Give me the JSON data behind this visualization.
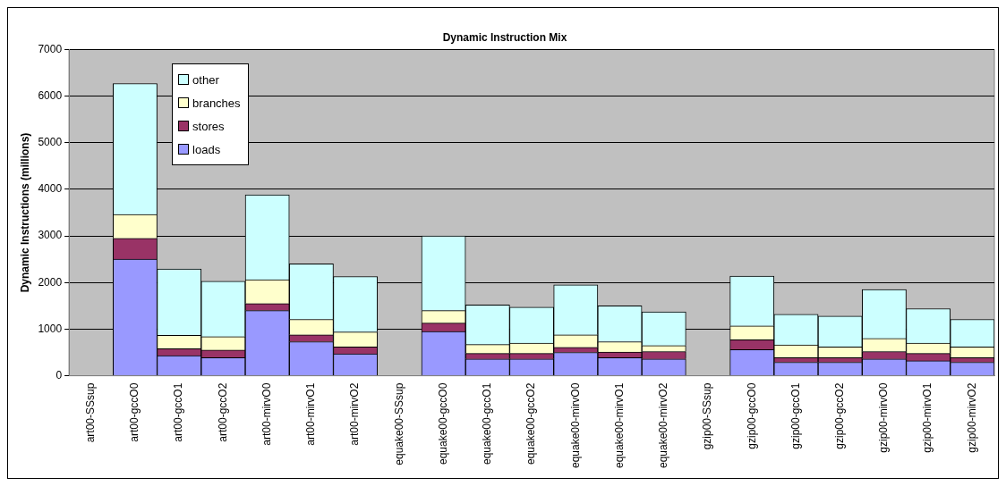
{
  "chart_data": {
    "type": "bar",
    "title": "Dynamic Instruction Mix",
    "ylabel": "Dynamic Instructions (millions)",
    "categories": [
      "art00-SSsup",
      "art00-gccO0",
      "art00-gccO1",
      "art00-gccO2",
      "art00-mirvO0",
      "art00-mirvO1",
      "art00-mirvO2",
      "equake00-SSsup",
      "equake00-gccO0",
      "equake00-gccO1",
      "equake00-gccO2",
      "equake00-mirvO0",
      "equake00-mirvO1",
      "equake00-mirvO2",
      "gzip00-SSsup",
      "gzip00-gccO0",
      "gzip00-gccO1",
      "gzip00-gccO2",
      "gzip00-mirvO0",
      "gzip00-mirvO1",
      "gzip00-mirvO2"
    ],
    "stacked": true,
    "series": [
      {
        "name": "loads",
        "color": "#9999ff",
        "values": [
          0,
          2500,
          430,
          390,
          1400,
          730,
          470,
          0,
          950,
          360,
          360,
          500,
          390,
          360,
          0,
          560,
          290,
          290,
          360,
          320,
          290
        ]
      },
      {
        "name": "stores",
        "color": "#993366",
        "values": [
          0,
          450,
          150,
          160,
          150,
          150,
          150,
          0,
          180,
          120,
          120,
          110,
          120,
          160,
          0,
          210,
          100,
          100,
          160,
          160,
          100
        ]
      },
      {
        "name": "branches",
        "color": "#ffffcc",
        "values": [
          0,
          510,
          290,
          290,
          510,
          330,
          320,
          0,
          270,
          190,
          220,
          270,
          220,
          130,
          0,
          300,
          270,
          230,
          280,
          220,
          230
        ]
      },
      {
        "name": "other",
        "color": "#ccffff",
        "values": [
          0,
          2810,
          1420,
          1190,
          1820,
          1190,
          1190,
          0,
          1600,
          850,
          770,
          1070,
          770,
          720,
          0,
          1070,
          660,
          660,
          1050,
          740,
          590
        ]
      }
    ],
    "ylim": [
      0,
      7000
    ],
    "yticks": [
      0,
      1000,
      2000,
      3000,
      4000,
      5000,
      6000,
      7000
    ],
    "grid": "y",
    "legend": "top left"
  }
}
